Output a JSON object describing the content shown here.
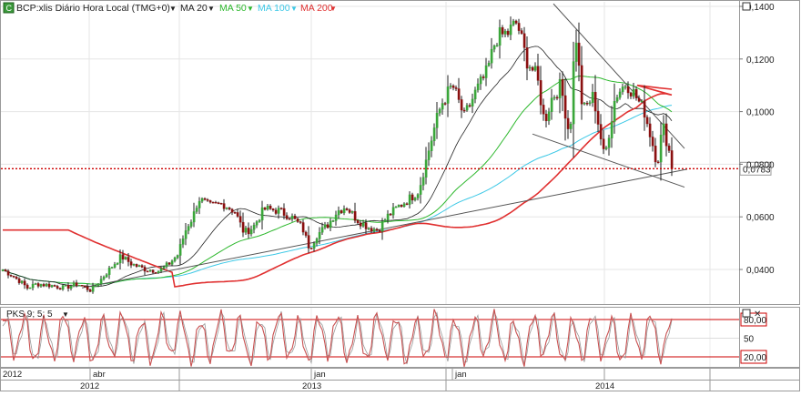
{
  "header": {
    "logo_text": "C",
    "title": "BCP:xlis Diário Hora Local (TMG+0)",
    "indicators": [
      {
        "label": "MA 20",
        "color": "#222222"
      },
      {
        "label": "MA 50",
        "color": "#2db82d"
      },
      {
        "label": "MA 100",
        "color": "#3cc8e6"
      },
      {
        "label": "MA 200",
        "color": "#e03030"
      }
    ]
  },
  "colors": {
    "candle_up": "#3aa63a",
    "candle_down": "#8b1010",
    "wick": "#222222",
    "ma20": "#222222",
    "ma50": "#2db82d",
    "ma100": "#3cc8e6",
    "ma200": "#e03030",
    "trendline": "#555555",
    "current_price_line": "#cc0000",
    "oscillator": "#c85050",
    "oscillator_band": "#cc0000"
  },
  "chart_data": [
    {
      "type": "candlestick",
      "name": "price",
      "y_ticks": [
        "0,1400",
        "0,1200",
        "0,1000",
        "0,0800",
        "0,0600",
        "0,0400"
      ],
      "ylim": [
        0.026,
        0.1405
      ],
      "current_price": "0,0783",
      "current_price_value": 0.0783,
      "anchors": [
        [
          0,
          0.0405
        ],
        [
          12,
          0.038
        ],
        [
          22,
          0.0355
        ],
        [
          30,
          0.033
        ],
        [
          40,
          0.0345
        ],
        [
          55,
          0.034
        ],
        [
          70,
          0.033
        ],
        [
          85,
          0.0345
        ],
        [
          100,
          0.032
        ],
        [
          108,
          0.035
        ],
        [
          120,
          0.04
        ],
        [
          133,
          0.045
        ],
        [
          145,
          0.042
        ],
        [
          160,
          0.04
        ],
        [
          175,
          0.0395
        ],
        [
          185,
          0.042
        ],
        [
          195,
          0.0455
        ],
        [
          205,
          0.056
        ],
        [
          212,
          0.06
        ],
        [
          218,
          0.067
        ],
        [
          230,
          0.064
        ],
        [
          245,
          0.065
        ],
        [
          258,
          0.062
        ],
        [
          268,
          0.054
        ],
        [
          278,
          0.056
        ],
        [
          290,
          0.063
        ],
        [
          305,
          0.0625
        ],
        [
          320,
          0.06
        ],
        [
          332,
          0.056
        ],
        [
          340,
          0.048
        ],
        [
          348,
          0.053
        ],
        [
          360,
          0.057
        ],
        [
          370,
          0.062
        ],
        [
          380,
          0.064
        ],
        [
          392,
          0.059
        ],
        [
          405,
          0.056
        ],
        [
          415,
          0.055
        ],
        [
          425,
          0.06
        ],
        [
          438,
          0.064
        ],
        [
          450,
          0.067
        ],
        [
          460,
          0.07
        ],
        [
          470,
          0.084
        ],
        [
          478,
          0.095
        ],
        [
          485,
          0.103
        ],
        [
          497,
          0.11
        ],
        [
          510,
          0.098
        ],
        [
          522,
          0.107
        ],
        [
          535,
          0.115
        ],
        [
          545,
          0.128
        ],
        [
          558,
          0.13
        ],
        [
          568,
          0.134
        ],
        [
          578,
          0.12
        ],
        [
          590,
          0.113
        ],
        [
          598,
          0.096
        ],
        [
          606,
          0.105
        ],
        [
          616,
          0.11
        ],
        [
          626,
          0.09
        ],
        [
          632,
          0.132
        ],
        [
          640,
          0.1
        ],
        [
          652,
          0.106
        ],
        [
          664,
          0.082
        ],
        [
          676,
          0.106
        ],
        [
          688,
          0.111
        ],
        [
          698,
          0.106
        ],
        [
          708,
          0.1
        ],
        [
          716,
          0.089
        ],
        [
          722,
          0.08
        ],
        [
          728,
          0.095
        ],
        [
          735,
          0.085
        ],
        [
          740,
          0.0783
        ]
      ],
      "ma_period": {
        "ma20": 20,
        "ma50": 50,
        "ma100": 100,
        "ma200": 200
      },
      "ma200_tail": [
        [
          700,
          0.11
        ],
        [
          712,
          0.1095
        ],
        [
          724,
          0.109
        ],
        [
          738,
          0.1085
        ]
      ],
      "trendlines": [
        {
          "from": [
            90,
            0.033
          ],
          "to": [
            755,
            0.0781
          ]
        },
        {
          "from": [
            585,
            0.0915
          ],
          "to": [
            752,
            0.0713
          ]
        },
        {
          "from": [
            608,
            0.141
          ],
          "to": [
            752,
            0.086
          ]
        }
      ]
    },
    {
      "type": "line",
      "name": "oscillator",
      "label": "PKS 9; 5; 5",
      "y_ticks": [
        "80,00",
        "50",
        "20,00"
      ],
      "ylim": [
        0,
        100
      ],
      "bands": [
        80,
        20
      ],
      "period": 21.5
    }
  ],
  "x_axis": {
    "months": [
      {
        "label": "2012",
        "x": 0
      },
      {
        "label": "abr",
        "x": 99
      },
      {
        "label": "jan",
        "x": 342
      },
      {
        "label": "jan",
        "x": 497
      }
    ],
    "years": [
      {
        "label": "2012",
        "x": 98
      },
      {
        "label": "2013",
        "x": 342
      },
      {
        "label": "2014",
        "x": 664
      }
    ]
  }
}
